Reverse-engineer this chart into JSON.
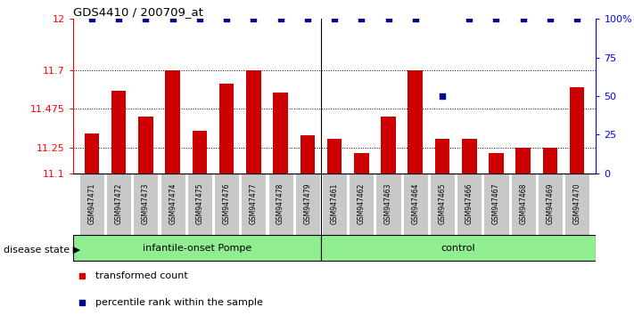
{
  "title": "GDS4410 / 200709_at",
  "samples": [
    "GSM947471",
    "GSM947472",
    "GSM947473",
    "GSM947474",
    "GSM947475",
    "GSM947476",
    "GSM947477",
    "GSM947478",
    "GSM947479",
    "GSM947461",
    "GSM947462",
    "GSM947463",
    "GSM947464",
    "GSM947465",
    "GSM947466",
    "GSM947467",
    "GSM947468",
    "GSM947469",
    "GSM947470"
  ],
  "red_values": [
    11.33,
    11.58,
    11.43,
    11.7,
    11.35,
    11.62,
    11.7,
    11.57,
    11.32,
    11.3,
    11.22,
    11.43,
    11.7,
    11.3,
    11.3,
    11.22,
    11.25,
    11.25,
    11.6
  ],
  "blue_values": [
    100,
    100,
    100,
    100,
    100,
    100,
    100,
    100,
    100,
    100,
    100,
    100,
    100,
    50,
    100,
    100,
    100,
    100,
    100
  ],
  "group_split": 9,
  "group0_label": "infantile-onset Pompe",
  "group1_label": "control",
  "group0_color": "#90EE90",
  "group1_color": "#90EE90",
  "ylim_left": [
    11.1,
    12.0
  ],
  "ylim_right": [
    0,
    100
  ],
  "yticks_left": [
    11.1,
    11.25,
    11.475,
    11.7,
    12
  ],
  "yticks_right": [
    0,
    25,
    50,
    75,
    100
  ],
  "ytick_labels_left": [
    "11.1",
    "11.25",
    "11.475",
    "11.7",
    "12"
  ],
  "ytick_labels_right": [
    "0",
    "25",
    "50",
    "75",
    "100%"
  ],
  "hlines": [
    11.25,
    11.475,
    11.7
  ],
  "bar_color": "#CC0000",
  "dot_color": "#00008B",
  "disease_state_label": "disease state",
  "legend_red": "transformed count",
  "legend_blue": "percentile rank within the sample"
}
